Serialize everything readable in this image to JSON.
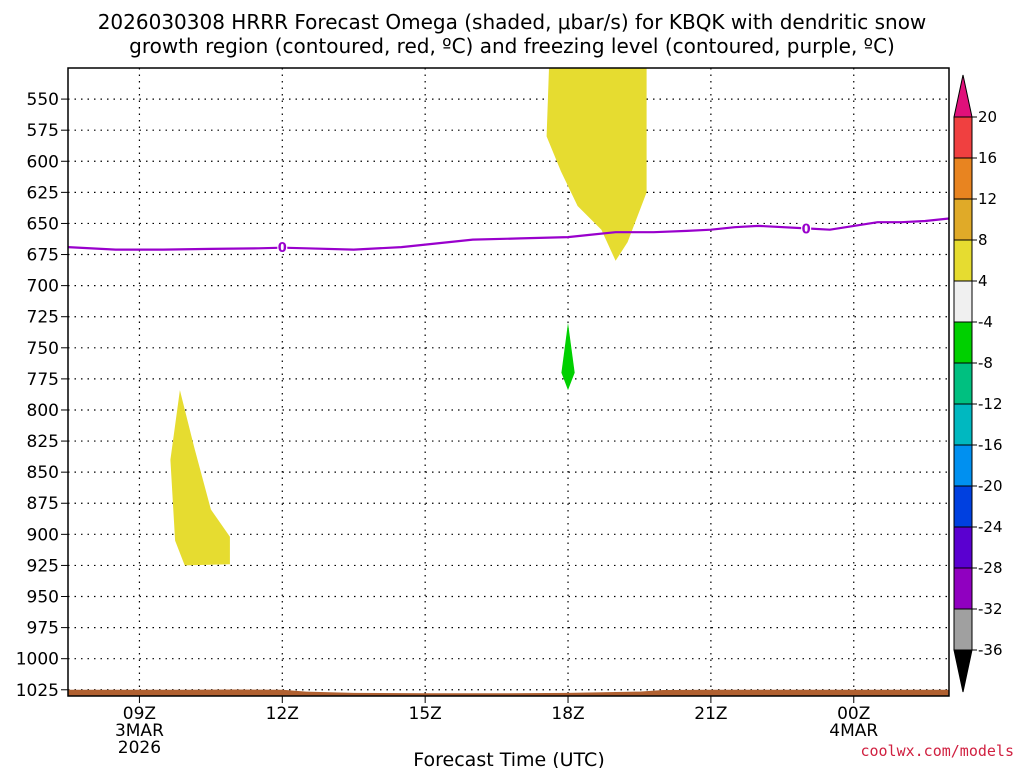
{
  "title_line1": "2026030308 HRRR Forecast Omega (shaded, μbar/s) for KBQK with dendritic snow",
  "title_line2": "growth region (contoured, red, ºC) and freezing level (contoured, purple, ºC)",
  "credit": "coolwx.com/models",
  "chart_data": {
    "type": "contour-cross-section",
    "xlabel": "Forecast Time (UTC)",
    "y_axis": {
      "quantity": "pressure (mb)",
      "inverted": true,
      "range": [
        1030,
        525
      ],
      "ticks": [
        550,
        575,
        600,
        625,
        650,
        675,
        700,
        725,
        750,
        775,
        800,
        825,
        850,
        875,
        900,
        925,
        950,
        975,
        1000,
        1025
      ]
    },
    "x_axis": {
      "range_hours_utc": [
        7.5,
        26.0
      ],
      "ticks": [
        {
          "hour": 9,
          "label": "09Z",
          "sub": [
            "3MAR",
            "2026"
          ]
        },
        {
          "hour": 12,
          "label": "12Z",
          "sub": []
        },
        {
          "hour": 15,
          "label": "15Z",
          "sub": []
        },
        {
          "hour": 18,
          "label": "18Z",
          "sub": []
        },
        {
          "hour": 21,
          "label": "21Z",
          "sub": []
        },
        {
          "hour": 24,
          "label": "00Z",
          "sub": [
            "4MAR"
          ]
        }
      ]
    },
    "grid": true,
    "colorbar": {
      "levels": [
        20,
        16,
        12,
        8,
        4,
        -4,
        -8,
        -12,
        -16,
        -20,
        -24,
        -28,
        -32,
        -36
      ],
      "colors": [
        "#f0f0f0",
        "#00d000",
        "#00c080",
        "#00b8c0",
        "#0090f0",
        "#0040e0",
        "#5a00d0",
        "#9000c0",
        "#a0a0a0"
      ],
      "colors_positive": [
        "#e6dc30",
        "#e0aa28",
        "#e88420",
        "#f04040"
      ],
      "top_arrow_color": "#e0107a",
      "bottom_arrow_color": "#000000"
    },
    "omega_regions": [
      {
        "value_range": [
          4,
          8
        ],
        "color": "#e6dc30",
        "points": [
          [
            9.85,
            784
          ],
          [
            10.15,
            830
          ],
          [
            10.5,
            880
          ],
          [
            10.9,
            902
          ],
          [
            10.9,
            924
          ],
          [
            9.95,
            925
          ],
          [
            9.75,
            905
          ],
          [
            9.65,
            840
          ]
        ]
      },
      {
        "value_range": [
          4,
          8
        ],
        "color": "#e6dc30",
        "points": [
          [
            17.6,
            525
          ],
          [
            19.65,
            525
          ],
          [
            19.65,
            625
          ],
          [
            19.5,
            640
          ],
          [
            19.25,
            665
          ],
          [
            19.0,
            680
          ],
          [
            18.7,
            655
          ],
          [
            18.2,
            636
          ],
          [
            17.85,
            608
          ],
          [
            17.55,
            580
          ]
        ]
      },
      {
        "value_range": [
          -8,
          -4
        ],
        "color": "#00d000",
        "points": [
          [
            18.0,
            730
          ],
          [
            18.14,
            770
          ],
          [
            18.0,
            784
          ],
          [
            17.86,
            770
          ]
        ]
      }
    ],
    "freezing_level": {
      "label": "0",
      "color": "#9900cc",
      "label_points": [
        [
          12.0,
          669
        ],
        [
          23.0,
          654
        ]
      ],
      "points": [
        [
          7.5,
          669
        ],
        [
          8.5,
          671
        ],
        [
          9.5,
          671
        ],
        [
          10.5,
          670.5
        ],
        [
          11.5,
          670
        ],
        [
          12.0,
          669.5
        ],
        [
          12.5,
          670
        ],
        [
          13.5,
          671
        ],
        [
          14.5,
          669
        ],
        [
          15.5,
          665
        ],
        [
          16.0,
          663
        ],
        [
          17.0,
          662
        ],
        [
          18.0,
          661
        ],
        [
          18.5,
          659
        ],
        [
          19.0,
          657
        ],
        [
          19.8,
          657
        ],
        [
          20.5,
          656
        ],
        [
          21.0,
          655
        ],
        [
          21.5,
          653
        ],
        [
          22.0,
          652
        ],
        [
          23.0,
          654
        ],
        [
          23.5,
          655
        ],
        [
          24.0,
          652
        ],
        [
          24.5,
          649
        ],
        [
          25.0,
          649
        ],
        [
          25.5,
          648
        ],
        [
          26.0,
          646
        ]
      ]
    },
    "terrain": {
      "color": "#b06030",
      "top_points": [
        [
          7.5,
          1025
        ],
        [
          9.0,
          1025
        ],
        [
          10.0,
          1025
        ],
        [
          11.0,
          1024.8
        ],
        [
          12.0,
          1025
        ],
        [
          12.5,
          1026.5
        ],
        [
          13.5,
          1027.5
        ],
        [
          15.0,
          1027.8
        ],
        [
          16.5,
          1027.8
        ],
        [
          18.0,
          1027.5
        ],
        [
          19.5,
          1026.5
        ],
        [
          20.0,
          1025.2
        ],
        [
          21.0,
          1025
        ],
        [
          23.0,
          1025
        ],
        [
          26.0,
          1025
        ]
      ]
    }
  }
}
